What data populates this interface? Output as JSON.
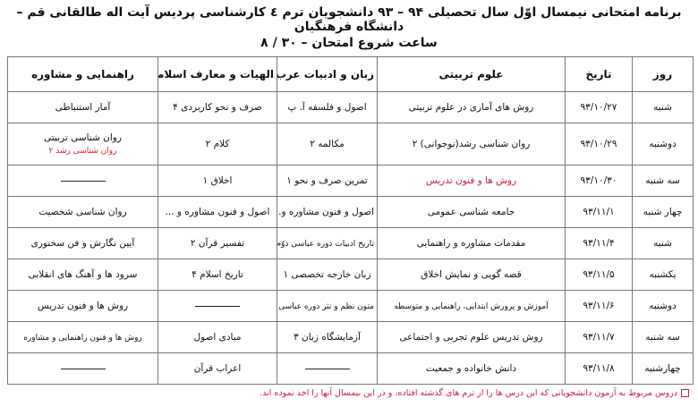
{
  "title": "برنامه امتحانی نیمسال اوّل سال تحصیلی ۹۴ – ۹۳ دانشجویان ترم ٤ کارشناسی  پردیس آیت اله طالقانی قم – دانشگاه فرهنگیان",
  "subtitle": "ساعت شروع امتحان – ۳۰ / ۸",
  "headers": [
    "روز",
    "تاریخ",
    "علوم تربیتی",
    "زبان و ادبیات عرب",
    "الهیات و معارف اسلامی",
    "راهنمایی و مشاوره"
  ],
  "rows": [
    {
      "day": "شنبه",
      "date": "۹۳/۱۰/۲۷",
      "c1": "روش های آماری در علوم تربیتی",
      "c2": "اصول و فلسفه آ. پ",
      "c3": "صرف و نحو کاربردی ۴",
      "c4": "آمار استنباطی"
    },
    {
      "day": "دوشنبه",
      "date": "۹۳/۱۰/۲۹",
      "c1": "روان شناسی رشد(نوجوانی) ۲",
      "c2": "مکالمه ۲",
      "c3": "کلام ۲",
      "c4": "روان شناسی تربیتی",
      "c4_note": "روان شناسی رشد ۲"
    },
    {
      "day": "سه شنبه",
      "date": "۹۳/۱۰/۳۰",
      "c1": "روش ها و فنون تدریس",
      "c2": "تمرین صرف و نحو ۱",
      "c3": "اخلاق ۱",
      "c4": ""
    },
    {
      "day": "چهار شنبه",
      "date": "۹۳/۱۱/۱",
      "c1": "جامعه شناسی عمومی",
      "c2": "اصول و فنون مشاوره و...",
      "c3": "اصول و فنون مشاوره و ...",
      "c4": "روان شناسی شخصیت"
    },
    {
      "day": "شنبه",
      "date": "۹۳/۱۱/۴",
      "c1": "مقدمات مشاوره و راهنمایی",
      "c2": "تاریخ ادبیات دوره عباسی دوّم",
      "c3": "تفسیر قرآن ۲",
      "c4": "آیین نگارش و فن سخنوری"
    },
    {
      "day": "یکشنبه",
      "date": "۹۳/۱۱/۵",
      "c1": "قصه گویی و نمایش اخلاق",
      "c2": "زبان خارجه تخصصی ۱",
      "c3": "تاریخ اسلام ۴",
      "c4": "سرود ها و آهنگ های انقلابی"
    },
    {
      "day": "دوشنبه",
      "date": "۹۳/۱۱/۶",
      "c1": "آموزش و پرورش ابتدایی، راهنمایی و متوسطه",
      "c2": "متون نظم و نثر دوره عباسی دوّم",
      "c3": "",
      "c4": "روش ها و فنون تدریس"
    },
    {
      "day": "سه شنبه",
      "date": "۹۳/۱۱/۷",
      "c1": "روش تدریس علوم تجربی و اجتماعی",
      "c2": "آزمایشگاه زبان ۳",
      "c3": "مبادی اصول",
      "c4": "روش ها و فنون راهنمایی و مشاوره"
    },
    {
      "day": "چهارشنبه",
      "date": "۹۳/۱۱/۸",
      "c1": "دانش خانواده و جمعیت",
      "c2": "",
      "c3": "اعراب قرآن",
      "c4": ""
    }
  ],
  "footnote": "دروس مربوط به آزمون دانشجویانی که این درس ها را از ترم های گذشته افتاده، و در این نیمسال آنها را اخذ نموده اند.",
  "colors": {
    "highlight": "#d0203a"
  }
}
